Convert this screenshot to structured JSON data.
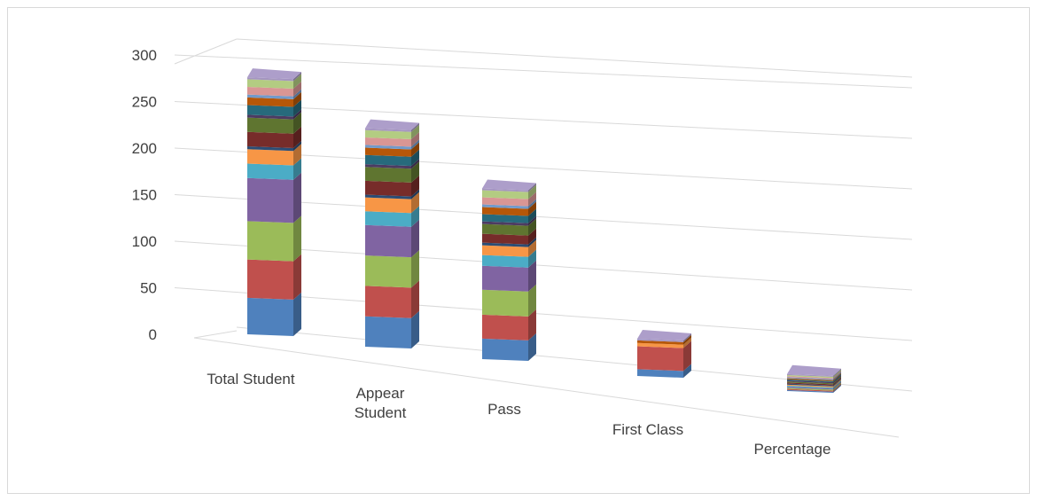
{
  "chart_data": {
    "type": "bar",
    "stacked": true,
    "three_d": true,
    "title": "",
    "xlabel": "",
    "ylabel": "",
    "ylim": [
      0,
      300
    ],
    "y_ticks": [
      "0",
      "50",
      "100",
      "150",
      "200",
      "250",
      "300"
    ],
    "grid": true,
    "legend": "none",
    "categories": [
      "Total Student",
      "Appear Student",
      "Pass",
      "First Class",
      "Percentage"
    ],
    "series": [
      {
        "color": "#4f81bd",
        "values": [
          38,
          33,
          23,
          8,
          0.5
        ]
      },
      {
        "color": "#c0504d",
        "values": [
          40,
          33,
          27,
          27,
          0.5
        ]
      },
      {
        "color": "#9bbb59",
        "values": [
          40,
          33,
          28,
          0,
          0.5
        ]
      },
      {
        "color": "#8064a2",
        "values": [
          45,
          33,
          27,
          0,
          0.5
        ]
      },
      {
        "color": "#4bacc6",
        "values": [
          15,
          15,
          12,
          0,
          0.5
        ]
      },
      {
        "color": "#f79646",
        "values": [
          15,
          15,
          11,
          4,
          1
        ]
      },
      {
        "color": "#2c4d75",
        "values": [
          3,
          3,
          3,
          0,
          0.5
        ]
      },
      {
        "color": "#772c2a",
        "values": [
          15,
          15,
          10,
          0,
          0.5
        ]
      },
      {
        "color": "#5f7530",
        "values": [
          15,
          15,
          11,
          0,
          1
        ]
      },
      {
        "color": "#4d3b62",
        "values": [
          3,
          3,
          3,
          0,
          0.5
        ]
      },
      {
        "color": "#276a7c",
        "values": [
          10,
          10,
          8,
          0,
          0.5
        ]
      },
      {
        "color": "#b65708",
        "values": [
          8,
          8,
          8,
          3,
          1
        ]
      },
      {
        "color": "#729aca",
        "values": [
          3,
          3,
          3,
          0,
          0.5
        ]
      },
      {
        "color": "#d99694",
        "values": [
          8,
          8,
          8,
          0,
          0.5
        ]
      },
      {
        "color": "#b3cc82",
        "values": [
          8,
          8,
          8,
          0,
          1
        ]
      },
      {
        "color": "#a596c0",
        "values": [
          2,
          2,
          2,
          2,
          1
        ]
      }
    ]
  }
}
